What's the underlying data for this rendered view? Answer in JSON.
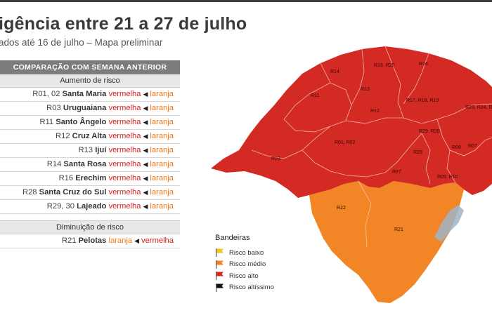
{
  "title": "igência entre 21 a 27 de julho",
  "subtitle": "ados até 16 de julho – Mapa preliminar",
  "comparison": {
    "header": "COMPARAÇÃO COM SEMANA ANTERIOR",
    "increase": {
      "label": "Aumento de risco",
      "rows": [
        {
          "code": "R01, 02",
          "place": "Santa Maria",
          "now": "vermelha",
          "prev": "laranja"
        },
        {
          "code": "R03",
          "place": "Uruguaiana",
          "now": "vermelha",
          "prev": "laranja"
        },
        {
          "code": "R11",
          "place": "Santo Ângelo",
          "now": "vermelha",
          "prev": "laranja"
        },
        {
          "code": "R12",
          "place": "Cruz Alta",
          "now": "vermelha",
          "prev": "laranja"
        },
        {
          "code": "R13",
          "place": "Ijuí",
          "now": "vermelha",
          "prev": "laranja"
        },
        {
          "code": "R14",
          "place": "Santa Rosa",
          "now": "vermelha",
          "prev": "laranja"
        },
        {
          "code": "R16",
          "place": "Erechim",
          "now": "vermelha",
          "prev": "laranja"
        },
        {
          "code": "R28",
          "place": "Santa Cruz do Sul",
          "now": "vermelha",
          "prev": "laranja"
        },
        {
          "code": "R29, 30",
          "place": "Lajeado",
          "now": "vermelha",
          "prev": "laranja"
        }
      ]
    },
    "decrease": {
      "label": "Diminuição de risco",
      "rows": [
        {
          "code": "R21",
          "place": "Pelotas",
          "now": "laranja",
          "prev": "vermelha"
        }
      ]
    }
  },
  "map": {
    "region_labels": [
      "R14",
      "R15, R20",
      "R16",
      "R11",
      "R13",
      "R17, R18, R19",
      "R23, R24, R",
      "R12",
      "R29, R30",
      "R01, R02",
      "R08",
      "R07",
      "R03",
      "R28",
      "R27",
      "R09, R10",
      "R22",
      "R21"
    ],
    "colors": {
      "alto": "#d42a24",
      "medio": "#f28627",
      "baixo": "#f6c51b",
      "altissimo": "#111111"
    }
  },
  "legend": {
    "title": "Bandeiras",
    "items": [
      {
        "label": "Risco baixo",
        "color": "#f6c51b"
      },
      {
        "label": "Risco médio",
        "color": "#f28627"
      },
      {
        "label": "Risco alto",
        "color": "#d42a24"
      },
      {
        "label": "Risco altíssimo",
        "color": "#111111"
      }
    ]
  }
}
